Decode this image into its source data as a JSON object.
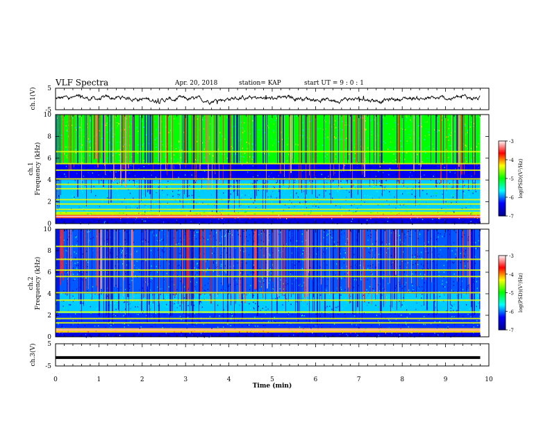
{
  "header": {
    "title": "VLF Spectra",
    "date": "Apr. 20, 2018",
    "station": "station= KAP",
    "start_ut": "start  UT =  9 : 0 : 1"
  },
  "panels": {
    "ch1_label": "ch.1(V)",
    "ch3_label": "ch.3(V)",
    "spec1_label_ch": "ch.1",
    "spec2_label_ch": "ch.2",
    "freq_label": "Frequency (kHz)",
    "time_label": "Time (min)",
    "colorbar_label": "log(PSD)(V²/Hz)"
  },
  "colors": {
    "colormap": [
      "#00008f",
      "#0000ff",
      "#00ffff",
      "#00ff00",
      "#ffff00",
      "#ff0000",
      "#ffffff"
    ],
    "trace": "#000000"
  },
  "chart_data": [
    {
      "type": "line",
      "name": "ch1-waveform",
      "ylabel": "ch.1(V)",
      "ylim": [
        -5,
        5
      ],
      "xlim": [
        0,
        10
      ],
      "yticks": [
        -5,
        5
      ],
      "description_values": "noisy waveform around ~0 V with amplitude ~±1 V, x from 0 to 9.8 min"
    },
    {
      "type": "heatmap",
      "name": "ch1-spectrogram",
      "ylabel": "Frequency (kHz)",
      "ylim": [
        0,
        10
      ],
      "xlim": [
        0,
        9.8
      ],
      "yticks": [
        0,
        2,
        4,
        6,
        8,
        10
      ],
      "colorbar": {
        "label": "log(PSD)(V²/Hz)",
        "range": [
          -7,
          -3
        ],
        "ticks": [
          -7,
          -6,
          -5,
          -4,
          -3
        ]
      },
      "bands_khz": [
        {
          "f": [
            0.0,
            0.5
          ],
          "level": -6.5
        },
        {
          "f": [
            0.5,
            0.8
          ],
          "level": -3.8
        },
        {
          "f": [
            0.8,
            1.1
          ],
          "level": -4.5
        },
        {
          "f": [
            1.1,
            4.0
          ],
          "level": -5.8
        },
        {
          "f": [
            4.0,
            5.5
          ],
          "level": -6.4
        },
        {
          "f": [
            5.5,
            10.0
          ],
          "level": -5.0
        }
      ],
      "lines_khz": [
        1.3,
        1.8,
        2.2,
        3.2,
        3.6,
        4.1,
        4.9,
        5.5,
        6.6
      ]
    },
    {
      "type": "heatmap",
      "name": "ch2-spectrogram",
      "ylabel": "Frequency (kHz)",
      "ylim": [
        0,
        10
      ],
      "xlim": [
        0,
        9.8
      ],
      "yticks": [
        0,
        2,
        4,
        6,
        8,
        10
      ],
      "colorbar": {
        "label": "log(PSD)(V²/Hz)",
        "range": [
          -7,
          -3
        ],
        "ticks": [
          -7,
          -6,
          -5,
          -4,
          -3
        ]
      },
      "bands_khz": [
        {
          "f": [
            0.0,
            0.4
          ],
          "level": -6.5
        },
        {
          "f": [
            0.4,
            0.8
          ],
          "level": -4.2
        },
        {
          "f": [
            0.8,
            2.2
          ],
          "level": -6.2
        },
        {
          "f": [
            2.2,
            4.0
          ],
          "level": -5.8
        },
        {
          "f": [
            4.0,
            10.0
          ],
          "level": -6.1
        }
      ],
      "lines_khz": [
        1.3,
        1.7,
        2.3,
        3.4,
        4.1,
        5.6,
        6.2,
        7.2,
        8.4
      ]
    },
    {
      "type": "line",
      "name": "ch3-waveform",
      "ylabel": "ch.3(V)",
      "ylim": [
        -5,
        5
      ],
      "xlim": [
        0,
        10
      ],
      "yticks": [
        -5,
        5
      ],
      "flat_level": -1.2
    }
  ],
  "xaxis": {
    "label": "Time (min)",
    "range": [
      0,
      10
    ],
    "ticks": [
      "0",
      "1",
      "2",
      "3",
      "4",
      "5",
      "6",
      "7",
      "8",
      "9",
      "10"
    ]
  }
}
